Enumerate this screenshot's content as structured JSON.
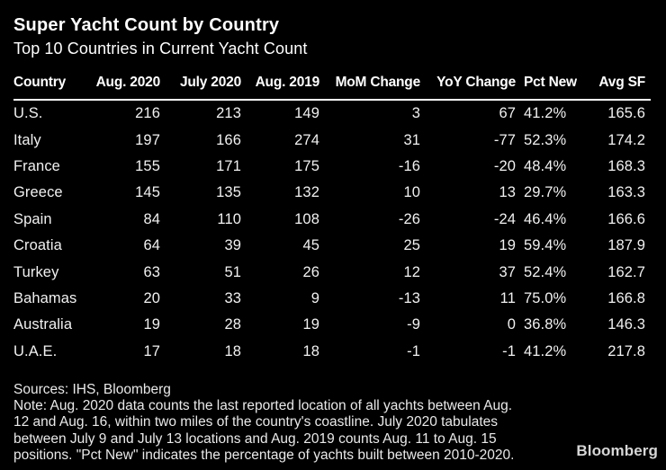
{
  "chart_data": {
    "type": "table",
    "title": "Super Yacht Count by Country",
    "subtitle": "Top 10 Countries in Current Yacht Count",
    "columns": [
      "Country",
      "Aug. 2020",
      "July 2020",
      "Aug. 2019",
      "MoM Change",
      "YoY Change",
      "Pct New",
      "Avg SF"
    ],
    "rows": [
      [
        "U.S.",
        216,
        213,
        149,
        3,
        67,
        "41.2%",
        165.6
      ],
      [
        "Italy",
        197,
        166,
        274,
        31,
        -77,
        "52.3%",
        174.2
      ],
      [
        "France",
        155,
        171,
        175,
        -16,
        -20,
        "48.4%",
        168.3
      ],
      [
        "Greece",
        145,
        135,
        132,
        10,
        13,
        "29.7%",
        163.3
      ],
      [
        "Spain",
        84,
        110,
        108,
        -26,
        -24,
        "46.4%",
        166.6
      ],
      [
        "Croatia",
        64,
        39,
        45,
        25,
        19,
        "59.4%",
        187.9
      ],
      [
        "Turkey",
        63,
        51,
        26,
        12,
        37,
        "52.4%",
        162.7
      ],
      [
        "Bahamas",
        20,
        33,
        9,
        -13,
        11,
        "75.0%",
        166.8
      ],
      [
        "Australia",
        19,
        28,
        19,
        -9,
        0,
        "36.8%",
        146.3
      ],
      [
        "U.A.E.",
        17,
        18,
        18,
        -1,
        -1,
        "41.2%",
        217.8
      ]
    ],
    "layout": {
      "header_rule": true,
      "numeric_alignment": "right",
      "pct_new_alignment": "left"
    }
  },
  "footer": {
    "sources": "Sources: IHS, Bloomberg",
    "note_lines": [
      "Note: Aug. 2020 data counts the last reported location of all yachts between Aug.",
      "12 and Aug. 16, within two miles of the country's coastline. July 2020 tabulates",
      "between July 9 and July 13 locations and Aug. 2019 counts Aug. 11 to Aug. 15",
      "positions. \"Pct New\" indicates the percentage of yachts built between 2010-2020."
    ],
    "brand": "Bloomberg"
  },
  "colors": {
    "background": "#000000",
    "title_text": "#ffffff",
    "cell_text": "#f1f1f1",
    "footer_text": "#e9e9e9",
    "brand_text": "#d6d6d6",
    "header_rule": "#ffffff"
  }
}
